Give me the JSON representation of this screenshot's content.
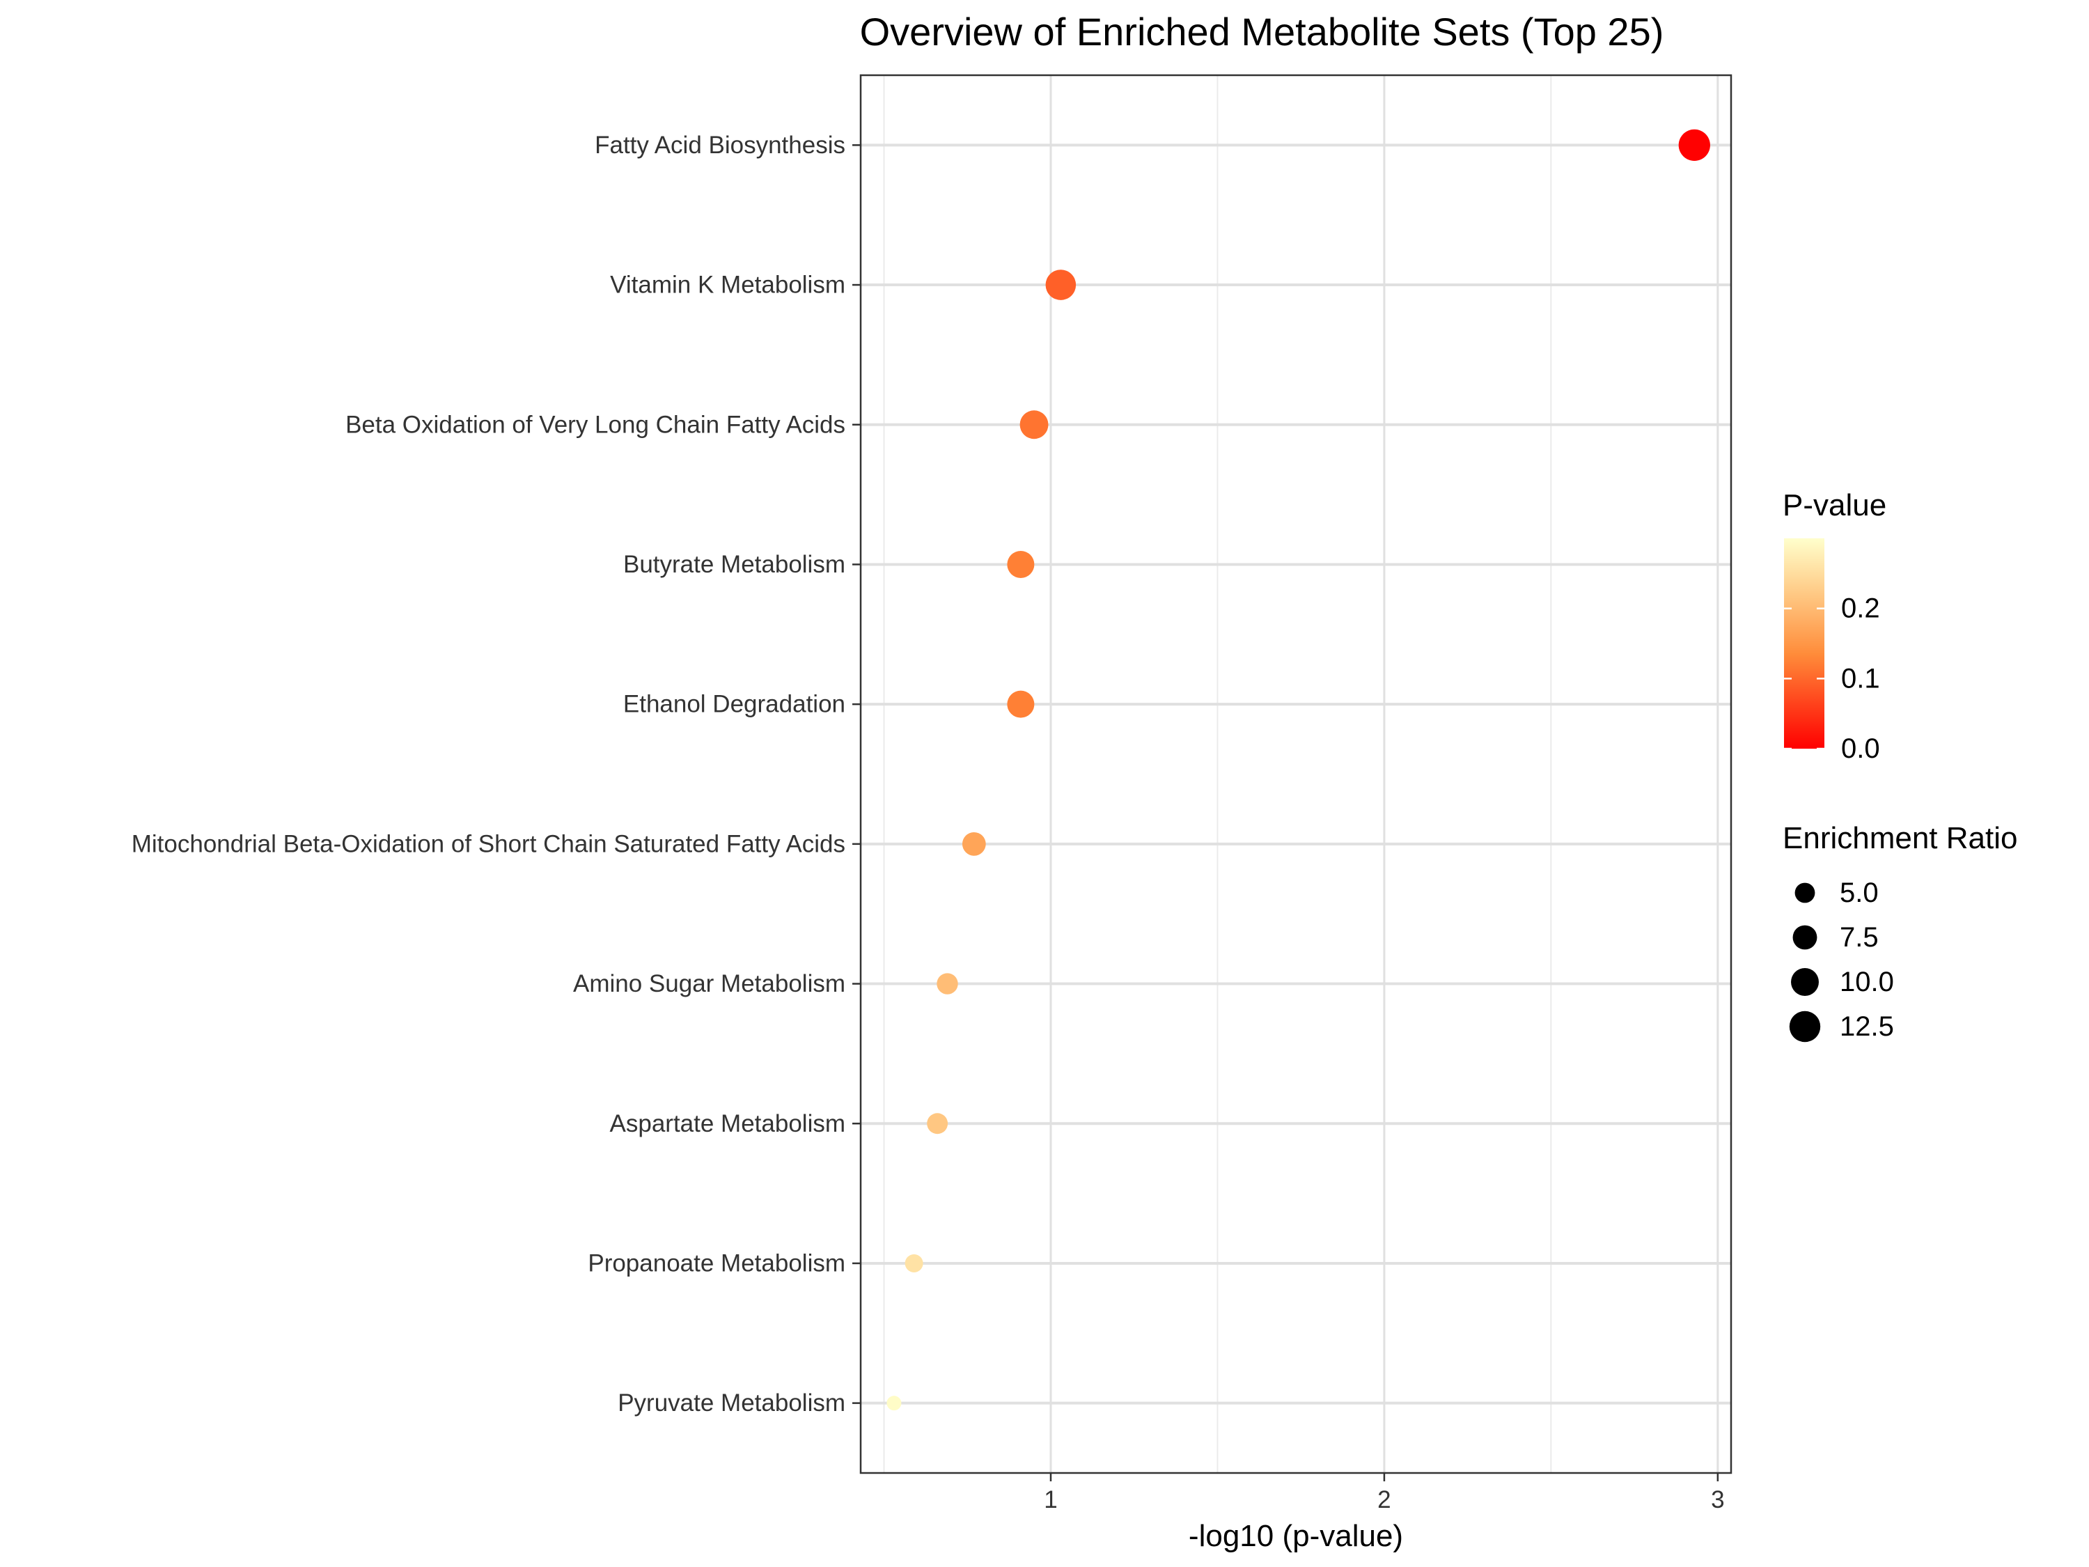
{
  "chart_data": {
    "type": "scatter",
    "title": "Overview of Enriched Metabolite Sets (Top 25)",
    "xlabel": "-log10 (p-value)",
    "ylabel": "",
    "xlim": [
      0.43,
      3.04
    ],
    "x_ticks": [
      "1",
      "2",
      "3"
    ],
    "grid": true,
    "legend_placement": "right",
    "categories": [
      "Fatty Acid Biosynthesis",
      "Vitamin K Metabolism",
      "Beta Oxidation of Very Long Chain Fatty Acids",
      "Butyrate Metabolism",
      "Ethanol Degradation",
      "Mitochondrial Beta-Oxidation of Short Chain Saturated Fatty Acids",
      "Amino Sugar Metabolism",
      "Aspartate Metabolism",
      "Propanoate Metabolism",
      "Pyruvate Metabolism"
    ],
    "points": [
      {
        "name": "Fatty Acid Biosynthesis",
        "x": 2.93,
        "p_value": 0.0012,
        "enrichment_ratio": 13.0
      },
      {
        "name": "Vitamin K Metabolism",
        "x": 1.03,
        "p_value": 0.093,
        "enrichment_ratio": 12.0
      },
      {
        "name": "Beta Oxidation of Very Long Chain Fatty Acids",
        "x": 0.95,
        "p_value": 0.112,
        "enrichment_ratio": 10.5
      },
      {
        "name": "Butyrate Metabolism",
        "x": 0.91,
        "p_value": 0.123,
        "enrichment_ratio": 9.5
      },
      {
        "name": "Ethanol Degradation",
        "x": 0.91,
        "p_value": 0.123,
        "enrichment_ratio": 9.5
      },
      {
        "name": "Mitochondrial Beta-Oxidation of Short Chain Saturated Fatty Acids",
        "x": 0.77,
        "p_value": 0.17,
        "enrichment_ratio": 7.0
      },
      {
        "name": "Amino Sugar Metabolism",
        "x": 0.69,
        "p_value": 0.204,
        "enrichment_ratio": 5.6
      },
      {
        "name": "Aspartate Metabolism",
        "x": 0.66,
        "p_value": 0.218,
        "enrichment_ratio": 5.4
      },
      {
        "name": "Propanoate Metabolism",
        "x": 0.59,
        "p_value": 0.257,
        "enrichment_ratio": 4.0
      },
      {
        "name": "Pyruvate Metabolism",
        "x": 0.53,
        "p_value": 0.295,
        "enrichment_ratio": 2.5
      }
    ],
    "color_legend": {
      "title": "P-value",
      "ticks": [
        "0.0",
        "0.1",
        "0.2"
      ],
      "tick_values": [
        0.0,
        0.1,
        0.2
      ],
      "range": [
        0.0,
        0.3
      ],
      "low_color": "#ff0000",
      "mid_color": "#ff8c3a",
      "high_color": "#ffffcc"
    },
    "size_legend": {
      "title": "Enrichment Ratio",
      "labels": [
        "5.0",
        "7.5",
        "10.0",
        "12.5"
      ],
      "values": [
        5.0,
        7.5,
        10.0,
        12.5
      ]
    }
  }
}
